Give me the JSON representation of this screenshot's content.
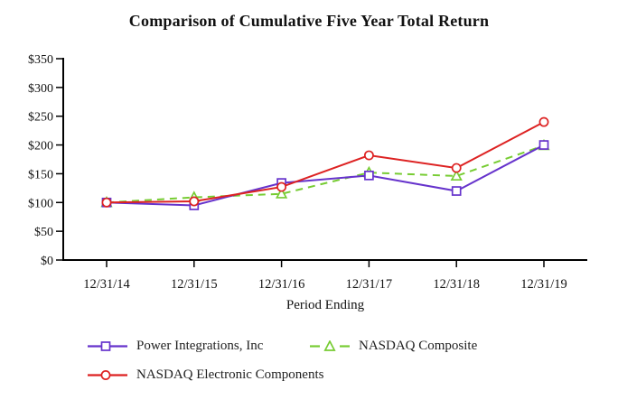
{
  "page": {
    "background": "#ffffff"
  },
  "chart_data": {
    "type": "line",
    "title": "Comparison of Cumulative Five Year Total Return",
    "xlabel": "Period Ending",
    "ylabel": "",
    "categories": [
      "12/31/14",
      "12/31/15",
      "12/31/16",
      "12/31/17",
      "12/31/18",
      "12/31/19"
    ],
    "y_tick_labels": [
      "$0",
      "$50",
      "$100",
      "$150",
      "$200",
      "$250",
      "$300",
      "$350"
    ],
    "y_tick_values": [
      0,
      50,
      100,
      150,
      200,
      250,
      300,
      350
    ],
    "ylim": [
      0,
      350
    ],
    "grid": false,
    "legend_position": "bottom-left",
    "axis_color": "#000000",
    "text_color": "#111111",
    "series": [
      {
        "name": "Power Integrations, Inc",
        "color": "#6633CC",
        "marker": "square",
        "line": "solid",
        "values": [
          100,
          95,
          134,
          147,
          120,
          200
        ]
      },
      {
        "name": "NASDAQ Composite",
        "color": "#77CC33",
        "marker": "triangle",
        "line": "dashed",
        "values": [
          100,
          109,
          115,
          152,
          146,
          199
        ]
      },
      {
        "name": "NASDAQ Electronic Components",
        "color": "#DD2222",
        "marker": "circle",
        "line": "solid",
        "values": [
          100,
          102,
          127,
          182,
          160,
          240
        ]
      }
    ]
  }
}
